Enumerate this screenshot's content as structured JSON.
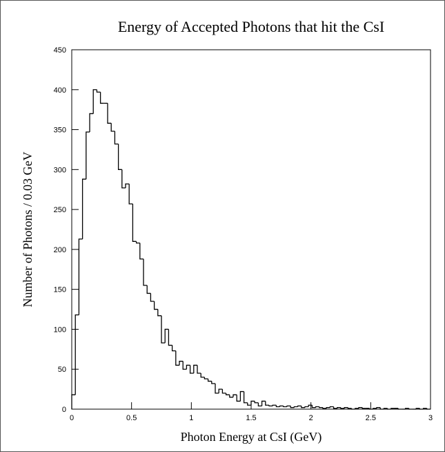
{
  "chart_data": {
    "type": "histogram",
    "title": "Energy of Accepted Photons that hit the CsI",
    "x_label": "Photon Energy at CsI (GeV)",
    "y_label": "Number of Photons / 0.03 GeV",
    "bins": [
      0,
      0.03,
      0.06,
      0.09,
      0.12,
      0.15,
      0.18,
      0.21,
      0.24,
      0.27,
      0.3,
      0.33,
      0.36,
      0.39,
      0.42,
      0.45,
      0.48,
      0.51,
      0.54,
      0.57,
      0.6,
      0.63,
      0.66,
      0.69,
      0.72,
      0.75,
      0.78,
      0.81,
      0.84,
      0.87,
      0.9,
      0.93,
      0.96,
      0.99,
      1.02,
      1.05,
      1.08,
      1.11,
      1.14,
      1.17,
      1.2,
      1.23,
      1.26,
      1.29,
      1.32,
      1.35,
      1.38,
      1.41,
      1.44,
      1.47,
      1.5,
      1.53,
      1.56,
      1.59,
      1.62,
      1.65,
      1.68,
      1.71,
      1.74,
      1.77,
      1.8,
      1.83,
      1.86,
      1.89,
      1.92,
      1.95,
      1.98,
      2.01,
      2.04,
      2.07,
      2.1,
      2.13,
      2.16,
      2.19,
      2.22,
      2.25,
      2.28,
      2.31,
      2.34,
      2.37,
      2.4,
      2.43,
      2.46,
      2.49,
      2.52,
      2.55,
      2.58,
      2.61,
      2.64,
      2.67,
      2.7,
      2.73,
      2.76,
      2.79,
      2.82,
      2.85,
      2.88,
      2.91,
      2.94,
      2.97,
      3
    ],
    "values": [
      18,
      118,
      213,
      288,
      347,
      370,
      400,
      397,
      383,
      383,
      358,
      348,
      332,
      300,
      277,
      282,
      257,
      210,
      208,
      188,
      155,
      145,
      135,
      125,
      117,
      83,
      100,
      80,
      73,
      55,
      60,
      50,
      55,
      45,
      55,
      45,
      40,
      38,
      35,
      32,
      20,
      25,
      20,
      18,
      15,
      18,
      10,
      22,
      8,
      5,
      10,
      8,
      4,
      10,
      5,
      4,
      5,
      3,
      4,
      3,
      4,
      2,
      3,
      4,
      2,
      3,
      5,
      2,
      3,
      2,
      1,
      2,
      3,
      1,
      2,
      1,
      2,
      1,
      0,
      1,
      2,
      1,
      1,
      0,
      1,
      2,
      0,
      1,
      0,
      1,
      1,
      0,
      0,
      1,
      0,
      0,
      1,
      0,
      1,
      0
    ],
    "color": "#000000",
    "xlim": [
      0,
      3
    ],
    "xticks": [
      0,
      0.5,
      1,
      1.5,
      2,
      2.5,
      3
    ],
    "ylim": [
      0,
      450
    ],
    "yticks": [
      0,
      50,
      100,
      150,
      200,
      250,
      300,
      350,
      400,
      450
    ]
  }
}
